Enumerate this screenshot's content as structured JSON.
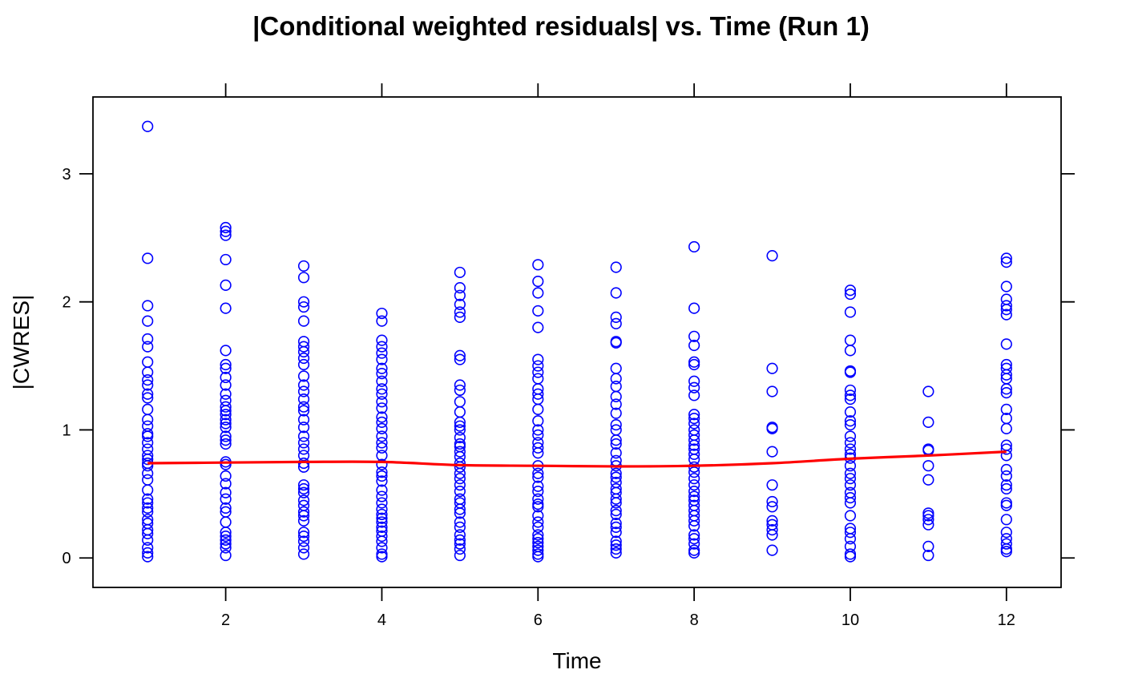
{
  "chart_data": {
    "type": "scatter",
    "title": "|Conditional weighted residuals| vs. Time (Run 1)",
    "xlabel": "Time",
    "ylabel": "|CWRES|",
    "xlim": [
      0.3,
      12.7
    ],
    "ylim": [
      -0.23,
      3.6
    ],
    "x_ticks": [
      2,
      4,
      6,
      8,
      10,
      12
    ],
    "x_tick_labels": [
      "2",
      "4",
      "6",
      "8",
      "10",
      "12"
    ],
    "y_ticks": [
      0,
      1,
      2,
      3
    ],
    "y_tick_labels": [
      "0",
      "1",
      "2",
      "3"
    ],
    "grid": false,
    "point_color": "#0000ff",
    "smooth_color": "#ff0000",
    "points": [
      {
        "x": 1,
        "values": [
          3.37,
          2.34,
          1.97,
          1.85,
          1.71,
          1.65,
          1.53,
          1.45,
          1.39,
          1.35,
          1.28,
          1.25,
          1.16,
          1.08,
          1.03,
          0.97,
          0.95,
          0.9,
          0.85,
          0.8,
          0.77,
          0.74,
          0.72,
          0.66,
          0.61,
          0.53,
          0.46,
          0.43,
          0.39,
          0.36,
          0.3,
          0.27,
          0.22,
          0.19,
          0.14,
          0.08,
          0.04,
          0.01
        ]
      },
      {
        "x": 2,
        "values": [
          2.58,
          2.55,
          2.52,
          2.33,
          2.13,
          1.95,
          1.62,
          1.51,
          1.48,
          1.41,
          1.35,
          1.28,
          1.23,
          1.18,
          1.15,
          1.12,
          1.08,
          1.05,
          1.02,
          0.95,
          0.92,
          0.89,
          0.75,
          0.73,
          0.64,
          0.58,
          0.51,
          0.46,
          0.39,
          0.36,
          0.28,
          0.2,
          0.17,
          0.14,
          0.11,
          0.08,
          0.02
        ]
      },
      {
        "x": 3,
        "values": [
          2.28,
          2.19,
          2.0,
          1.96,
          1.85,
          1.69,
          1.65,
          1.61,
          1.56,
          1.51,
          1.42,
          1.35,
          1.3,
          1.24,
          1.18,
          1.15,
          1.08,
          1.02,
          0.95,
          0.9,
          0.85,
          0.8,
          0.74,
          0.71,
          0.57,
          0.54,
          0.51,
          0.45,
          0.41,
          0.36,
          0.33,
          0.29,
          0.2,
          0.17,
          0.13,
          0.08,
          0.03
        ]
      },
      {
        "x": 4,
        "values": [
          1.91,
          1.85,
          1.7,
          1.65,
          1.6,
          1.55,
          1.48,
          1.44,
          1.38,
          1.32,
          1.28,
          1.22,
          1.17,
          1.1,
          1.06,
          1.01,
          0.95,
          0.9,
          0.86,
          0.8,
          0.73,
          0.67,
          0.64,
          0.6,
          0.53,
          0.48,
          0.43,
          0.38,
          0.34,
          0.31,
          0.28,
          0.24,
          0.21,
          0.17,
          0.13,
          0.08,
          0.03,
          0.01
        ]
      },
      {
        "x": 5,
        "values": [
          2.23,
          2.11,
          2.05,
          1.98,
          1.92,
          1.88,
          1.58,
          1.55,
          1.35,
          1.31,
          1.22,
          1.14,
          1.06,
          1.03,
          1.0,
          0.94,
          0.89,
          0.87,
          0.83,
          0.79,
          0.74,
          0.71,
          0.66,
          0.62,
          0.57,
          0.52,
          0.46,
          0.43,
          0.38,
          0.35,
          0.28,
          0.24,
          0.18,
          0.14,
          0.11,
          0.07,
          0.02
        ]
      },
      {
        "x": 6,
        "values": [
          2.29,
          2.16,
          2.07,
          1.93,
          1.8,
          1.55,
          1.5,
          1.45,
          1.4,
          1.32,
          1.28,
          1.24,
          1.16,
          1.07,
          1.0,
          0.96,
          0.9,
          0.86,
          0.82,
          0.72,
          0.66,
          0.63,
          0.56,
          0.52,
          0.46,
          0.42,
          0.4,
          0.33,
          0.28,
          0.24,
          0.18,
          0.15,
          0.12,
          0.09,
          0.06,
          0.03,
          0.01
        ]
      },
      {
        "x": 7,
        "values": [
          2.27,
          2.07,
          1.88,
          1.83,
          1.69,
          1.68,
          1.48,
          1.4,
          1.34,
          1.26,
          1.2,
          1.13,
          1.04,
          1.0,
          0.92,
          0.89,
          0.82,
          0.76,
          0.72,
          0.66,
          0.63,
          0.59,
          0.54,
          0.51,
          0.46,
          0.43,
          0.37,
          0.34,
          0.27,
          0.24,
          0.2,
          0.13,
          0.1,
          0.07,
          0.04
        ]
      },
      {
        "x": 8,
        "values": [
          2.43,
          1.95,
          1.73,
          1.66,
          1.53,
          1.51,
          1.38,
          1.33,
          1.27,
          1.12,
          1.09,
          1.05,
          1.0,
          0.96,
          0.92,
          0.88,
          0.85,
          0.81,
          0.77,
          0.71,
          0.67,
          0.62,
          0.57,
          0.52,
          0.48,
          0.45,
          0.41,
          0.37,
          0.33,
          0.29,
          0.25,
          0.18,
          0.15,
          0.11,
          0.06,
          0.04
        ]
      },
      {
        "x": 9,
        "values": [
          2.36,
          1.48,
          1.3,
          1.02,
          1.01,
          0.83,
          0.57,
          0.44,
          0.4,
          0.29,
          0.26,
          0.22,
          0.18,
          0.06
        ]
      },
      {
        "x": 10,
        "values": [
          2.09,
          2.06,
          1.92,
          1.7,
          1.62,
          1.46,
          1.45,
          1.31,
          1.27,
          1.24,
          1.14,
          1.07,
          1.04,
          0.95,
          0.9,
          0.85,
          0.81,
          0.78,
          0.72,
          0.66,
          0.62,
          0.57,
          0.51,
          0.47,
          0.43,
          0.33,
          0.23,
          0.2,
          0.15,
          0.09,
          0.03,
          0.01
        ]
      },
      {
        "x": 11,
        "values": [
          1.3,
          1.06,
          0.85,
          0.84,
          0.72,
          0.61,
          0.35,
          0.33,
          0.3,
          0.26,
          0.09,
          0.02
        ]
      },
      {
        "x": 12,
        "values": [
          2.34,
          2.31,
          2.12,
          2.02,
          1.97,
          1.94,
          1.9,
          1.67,
          1.51,
          1.48,
          1.43,
          1.4,
          1.32,
          1.29,
          1.16,
          1.09,
          1.01,
          0.88,
          0.85,
          0.8,
          0.69,
          0.64,
          0.57,
          0.54,
          0.43,
          0.41,
          0.3,
          0.2,
          0.15,
          0.11,
          0.07,
          0.05
        ]
      }
    ],
    "smooth": {
      "x": [
        1,
        2,
        3,
        4,
        5,
        6,
        7,
        8,
        9,
        10,
        11,
        12
      ],
      "y": [
        0.74,
        0.745,
        0.75,
        0.75,
        0.725,
        0.72,
        0.715,
        0.72,
        0.74,
        0.775,
        0.8,
        0.83
      ]
    }
  }
}
